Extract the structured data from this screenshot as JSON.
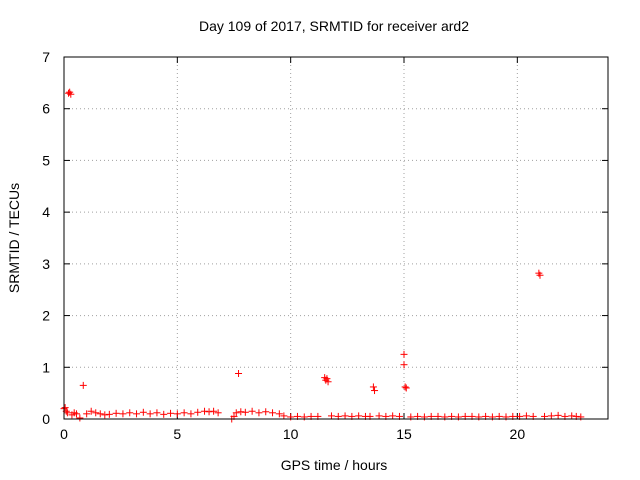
{
  "chart_data": {
    "type": "scatter",
    "title": "Day 109 of 2017, SRMTID for receiver ard2",
    "xlabel": "GPS time / hours",
    "ylabel": "SRMTID / TECUs",
    "xlim": [
      0,
      24
    ],
    "ylim": [
      0,
      7
    ],
    "xticks": [
      0,
      5,
      10,
      15,
      20
    ],
    "xtick_labels": [
      "0",
      "5",
      "10",
      "15",
      "20"
    ],
    "yticks": [
      0,
      1,
      2,
      3,
      4,
      5,
      6,
      7
    ],
    "ytick_labels": [
      "0",
      "1",
      "2",
      "3",
      "4",
      "5",
      "6",
      "7"
    ],
    "grid": true,
    "marker": "+",
    "color": "#ff0000",
    "series": [
      {
        "name": "SRMTID",
        "points": [
          [
            0.0,
            0.2
          ],
          [
            0.05,
            0.22
          ],
          [
            0.1,
            0.15
          ],
          [
            0.15,
            0.12
          ],
          [
            0.2,
            6.3
          ],
          [
            0.25,
            6.32
          ],
          [
            0.3,
            6.28
          ],
          [
            0.35,
            0.08
          ],
          [
            0.45,
            0.12
          ],
          [
            0.55,
            0.1
          ],
          [
            0.7,
            0.02
          ],
          [
            0.85,
            0.65
          ],
          [
            1.0,
            0.1
          ],
          [
            1.2,
            0.15
          ],
          [
            1.4,
            0.12
          ],
          [
            1.6,
            0.1
          ],
          [
            1.8,
            0.08
          ],
          [
            2.0,
            0.09
          ],
          [
            2.3,
            0.11
          ],
          [
            2.6,
            0.1
          ],
          [
            2.9,
            0.12
          ],
          [
            3.2,
            0.1
          ],
          [
            3.5,
            0.13
          ],
          [
            3.8,
            0.1
          ],
          [
            4.1,
            0.12
          ],
          [
            4.4,
            0.09
          ],
          [
            4.7,
            0.11
          ],
          [
            5.0,
            0.1
          ],
          [
            5.3,
            0.12
          ],
          [
            5.6,
            0.1
          ],
          [
            5.9,
            0.13
          ],
          [
            6.2,
            0.15
          ],
          [
            6.4,
            0.14
          ],
          [
            6.6,
            0.15
          ],
          [
            6.8,
            0.12
          ],
          [
            7.4,
            0.0
          ],
          [
            7.5,
            0.05
          ],
          [
            7.6,
            0.12
          ],
          [
            7.7,
            0.88
          ],
          [
            7.8,
            0.14
          ],
          [
            8.0,
            0.13
          ],
          [
            8.3,
            0.15
          ],
          [
            8.6,
            0.12
          ],
          [
            8.9,
            0.14
          ],
          [
            9.2,
            0.12
          ],
          [
            9.5,
            0.1
          ],
          [
            9.7,
            0.06
          ],
          [
            10.0,
            0.04
          ],
          [
            10.3,
            0.05
          ],
          [
            10.6,
            0.04
          ],
          [
            10.9,
            0.05
          ],
          [
            11.2,
            0.05
          ],
          [
            11.5,
            0.8
          ],
          [
            11.55,
            0.75
          ],
          [
            11.6,
            0.78
          ],
          [
            11.65,
            0.72
          ],
          [
            11.8,
            0.06
          ],
          [
            12.1,
            0.05
          ],
          [
            12.4,
            0.06
          ],
          [
            12.7,
            0.05
          ],
          [
            13.0,
            0.06
          ],
          [
            13.3,
            0.05
          ],
          [
            13.5,
            0.05
          ],
          [
            13.65,
            0.62
          ],
          [
            13.7,
            0.55
          ],
          [
            13.9,
            0.06
          ],
          [
            14.2,
            0.05
          ],
          [
            14.5,
            0.06
          ],
          [
            14.8,
            0.05
          ],
          [
            15.0,
            1.25
          ],
          [
            15.0,
            1.05
          ],
          [
            15.05,
            0.62
          ],
          [
            15.1,
            0.6
          ],
          [
            15.3,
            0.04
          ],
          [
            15.6,
            0.05
          ],
          [
            15.9,
            0.04
          ],
          [
            16.2,
            0.05
          ],
          [
            16.5,
            0.05
          ],
          [
            16.8,
            0.04
          ],
          [
            17.1,
            0.05
          ],
          [
            17.4,
            0.04
          ],
          [
            17.7,
            0.05
          ],
          [
            18.0,
            0.05
          ],
          [
            18.3,
            0.04
          ],
          [
            18.6,
            0.05
          ],
          [
            18.9,
            0.04
          ],
          [
            19.2,
            0.05
          ],
          [
            19.5,
            0.04
          ],
          [
            19.8,
            0.05
          ],
          [
            20.1,
            0.05
          ],
          [
            20.4,
            0.06
          ],
          [
            20.7,
            0.05
          ],
          [
            20.95,
            2.82
          ],
          [
            21.0,
            2.78
          ],
          [
            21.2,
            0.05
          ],
          [
            21.5,
            0.06
          ],
          [
            21.8,
            0.07
          ],
          [
            22.1,
            0.05
          ],
          [
            22.4,
            0.06
          ],
          [
            22.6,
            0.05
          ],
          [
            22.8,
            0.04
          ]
        ]
      }
    ]
  }
}
